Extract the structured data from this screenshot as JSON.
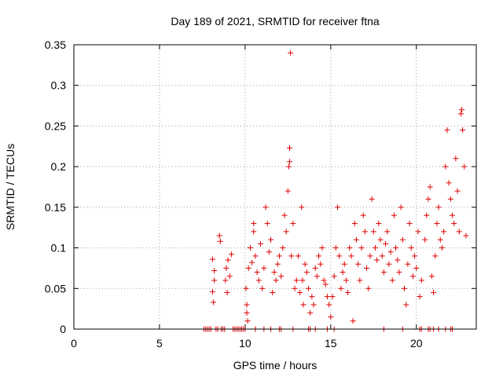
{
  "chart_data": {
    "type": "scatter",
    "title": "Day 189 of 2021, SRMTID for receiver ftna",
    "xlabel": "GPS time / hours",
    "ylabel": "SRMTID / TECUs",
    "xlim": [
      0,
      23.5
    ],
    "ylim": [
      0,
      0.35
    ],
    "xticks": [
      0,
      5,
      10,
      15,
      20
    ],
    "xtick_labels": [
      "0",
      "5",
      "10",
      "15",
      "20"
    ],
    "yticks": [
      0,
      0.05,
      0.1,
      0.15,
      0.2,
      0.25,
      0.3,
      0.35
    ],
    "ytick_labels": [
      "0",
      "0.05",
      "0.1",
      "0.15",
      "0.2",
      "0.25",
      "0.3",
      "0.35"
    ],
    "grid": true,
    "marker": "+",
    "color": "#e00000",
    "series": [
      {
        "name": "SRMTID",
        "points": [
          [
            8.1,
            0.086
          ],
          [
            8.1,
            0.046
          ],
          [
            8.15,
            0.033
          ],
          [
            8.2,
            0.072
          ],
          [
            8.2,
            0.06
          ],
          [
            8.5,
            0.115
          ],
          [
            8.55,
            0.108
          ],
          [
            8.85,
            0.06
          ],
          [
            8.9,
            0.075
          ],
          [
            8.95,
            0.045
          ],
          [
            9.0,
            0.085
          ],
          [
            9.1,
            0.065
          ],
          [
            9.2,
            0.092
          ],
          [
            10.05,
            0.05
          ],
          [
            10.1,
            0.03
          ],
          [
            10.1,
            0.02
          ],
          [
            10.15,
            0.01
          ],
          [
            10.2,
            0.075
          ],
          [
            10.3,
            0.1
          ],
          [
            10.4,
            0.082
          ],
          [
            10.5,
            0.12
          ],
          [
            10.5,
            0.13
          ],
          [
            10.6,
            0.09
          ],
          [
            10.7,
            0.07
          ],
          [
            10.8,
            0.06
          ],
          [
            10.9,
            0.105
          ],
          [
            11.0,
            0.05
          ],
          [
            11.1,
            0.075
          ],
          [
            11.2,
            0.15
          ],
          [
            11.3,
            0.13
          ],
          [
            11.4,
            0.095
          ],
          [
            11.5,
            0.11
          ],
          [
            11.6,
            0.045
          ],
          [
            11.7,
            0.07
          ],
          [
            11.8,
            0.06
          ],
          [
            11.9,
            0.08
          ],
          [
            12.0,
            0.09
          ],
          [
            12.1,
            0.065
          ],
          [
            12.2,
            0.1
          ],
          [
            12.3,
            0.14
          ],
          [
            12.4,
            0.12
          ],
          [
            12.5,
            0.17
          ],
          [
            12.55,
            0.2
          ],
          [
            12.6,
            0.223
          ],
          [
            12.6,
            0.206
          ],
          [
            12.65,
            0.34
          ],
          [
            12.7,
            0.09
          ],
          [
            12.8,
            0.13
          ],
          [
            12.9,
            0.05
          ],
          [
            13.0,
            0.06
          ],
          [
            13.1,
            0.09
          ],
          [
            13.2,
            0.045
          ],
          [
            13.3,
            0.15
          ],
          [
            13.35,
            0.06
          ],
          [
            13.4,
            0.03
          ],
          [
            13.5,
            0.08
          ],
          [
            13.6,
            0.07
          ],
          [
            13.7,
            0.05
          ],
          [
            13.8,
            0.02
          ],
          [
            13.9,
            0.04
          ],
          [
            14.0,
            0.03
          ],
          [
            14.1,
            0.075
          ],
          [
            14.2,
            0.065
          ],
          [
            14.3,
            0.09
          ],
          [
            14.4,
            0.08
          ],
          [
            14.5,
            0.1
          ],
          [
            14.6,
            0.06
          ],
          [
            14.7,
            0.055
          ],
          [
            14.8,
            0.04
          ],
          [
            14.9,
            0.03
          ],
          [
            15.0,
            0.015
          ],
          [
            15.1,
            0.04
          ],
          [
            15.2,
            0.065
          ],
          [
            15.3,
            0.1
          ],
          [
            15.4,
            0.15
          ],
          [
            15.5,
            0.09
          ],
          [
            15.6,
            0.05
          ],
          [
            15.7,
            0.07
          ],
          [
            15.8,
            0.08
          ],
          [
            15.9,
            0.06
          ],
          [
            16.0,
            0.045
          ],
          [
            16.1,
            0.1
          ],
          [
            16.2,
            0.09
          ],
          [
            16.3,
            0.01
          ],
          [
            16.4,
            0.13
          ],
          [
            16.5,
            0.11
          ],
          [
            16.6,
            0.08
          ],
          [
            16.7,
            0.06
          ],
          [
            16.8,
            0.1
          ],
          [
            16.9,
            0.14
          ],
          [
            17.0,
            0.12
          ],
          [
            17.1,
            0.075
          ],
          [
            17.2,
            0.05
          ],
          [
            17.3,
            0.09
          ],
          [
            17.4,
            0.16
          ],
          [
            17.5,
            0.12
          ],
          [
            17.6,
            0.1
          ],
          [
            17.7,
            0.085
          ],
          [
            17.8,
            0.13
          ],
          [
            17.9,
            0.11
          ],
          [
            18.0,
            0.09
          ],
          [
            18.1,
            0.07
          ],
          [
            18.2,
            0.105
          ],
          [
            18.3,
            0.12
          ],
          [
            18.4,
            0.08
          ],
          [
            18.5,
            0.095
          ],
          [
            18.6,
            0.06
          ],
          [
            18.7,
            0.14
          ],
          [
            18.8,
            0.1
          ],
          [
            18.9,
            0.085
          ],
          [
            19.0,
            0.07
          ],
          [
            19.1,
            0.15
          ],
          [
            19.2,
            0.11
          ],
          [
            19.3,
            0.05
          ],
          [
            19.4,
            0.03
          ],
          [
            19.5,
            0.08
          ],
          [
            19.6,
            0.13
          ],
          [
            19.7,
            0.1
          ],
          [
            19.8,
            0.065
          ],
          [
            19.9,
            0.09
          ],
          [
            20.0,
            0.075
          ],
          [
            20.1,
            0.12
          ],
          [
            20.2,
            0.04
          ],
          [
            20.3,
            0.06
          ],
          [
            20.5,
            0.11
          ],
          [
            20.6,
            0.14
          ],
          [
            20.7,
            0.16
          ],
          [
            20.8,
            0.175
          ],
          [
            20.9,
            0.065
          ],
          [
            21.0,
            0.045
          ],
          [
            21.1,
            0.09
          ],
          [
            21.2,
            0.13
          ],
          [
            21.3,
            0.15
          ],
          [
            21.4,
            0.11
          ],
          [
            21.5,
            0.1
          ],
          [
            21.6,
            0.12
          ],
          [
            21.7,
            0.2
          ],
          [
            21.8,
            0.245
          ],
          [
            21.9,
            0.18
          ],
          [
            22.0,
            0.16
          ],
          [
            22.1,
            0.14
          ],
          [
            22.2,
            0.13
          ],
          [
            22.3,
            0.21
          ],
          [
            22.4,
            0.17
          ],
          [
            22.5,
            0.12
          ],
          [
            22.6,
            0.265
          ],
          [
            22.65,
            0.27
          ],
          [
            22.7,
            0.245
          ],
          [
            22.8,
            0.2
          ],
          [
            22.9,
            0.115
          ],
          [
            7.6,
            0
          ],
          [
            7.7,
            0
          ],
          [
            7.8,
            0
          ],
          [
            7.9,
            0
          ],
          [
            8.0,
            0
          ],
          [
            8.3,
            0
          ],
          [
            8.4,
            0
          ],
          [
            8.6,
            0
          ],
          [
            8.7,
            0
          ],
          [
            8.8,
            0
          ],
          [
            9.3,
            0
          ],
          [
            9.4,
            0
          ],
          [
            9.5,
            0
          ],
          [
            9.6,
            0
          ],
          [
            9.7,
            0
          ],
          [
            9.8,
            0
          ],
          [
            9.9,
            0
          ],
          [
            10.0,
            0
          ],
          [
            10.6,
            0
          ],
          [
            11.1,
            0
          ],
          [
            11.5,
            0
          ],
          [
            12.0,
            0
          ],
          [
            12.1,
            0
          ],
          [
            12.8,
            0
          ],
          [
            13.7,
            0
          ],
          [
            13.8,
            0
          ],
          [
            14.1,
            0
          ],
          [
            14.8,
            0
          ],
          [
            15.2,
            0
          ],
          [
            18.1,
            0
          ],
          [
            19.2,
            0
          ],
          [
            20.2,
            0
          ],
          [
            20.3,
            0
          ],
          [
            20.7,
            0
          ],
          [
            20.8,
            0
          ],
          [
            21.0,
            0
          ],
          [
            21.3,
            0
          ],
          [
            21.7,
            0
          ],
          [
            22.0,
            0
          ],
          [
            22.1,
            0
          ]
        ]
      }
    ]
  }
}
